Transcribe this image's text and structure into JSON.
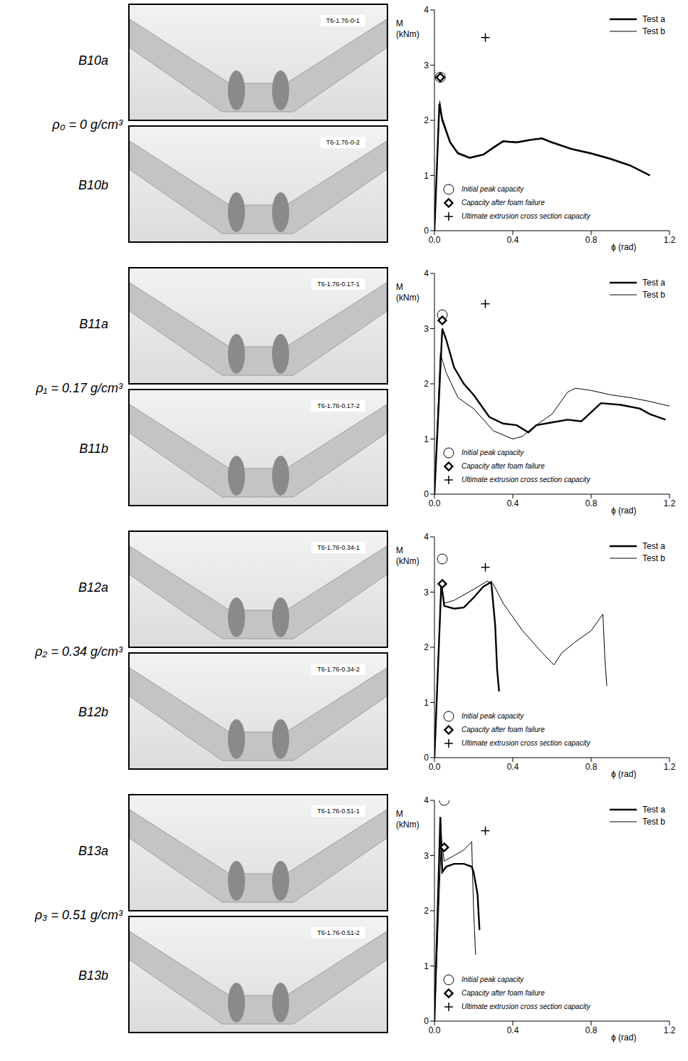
{
  "chart_data": [
    {
      "type": "line",
      "specimens": [
        "B10a",
        "B10b"
      ],
      "tags": [
        "T6-1.76-0-1",
        "T6-1.76-0-2"
      ],
      "density": "ρ₀ = 0 g/cm³",
      "x_label": "ϕ (rad)",
      "y_label": "M (kNm)",
      "xlim": [
        0,
        1.2
      ],
      "xticks": [
        {
          "value": 0,
          "label": "0.0"
        },
        0.4,
        0.8,
        1.2
      ],
      "ylim": [
        0,
        4
      ],
      "yticks": [
        0,
        1,
        2,
        3,
        4
      ],
      "legend": "upper right",
      "series": [
        {
          "name": "Test a",
          "color": "#000000",
          "x": [
            0,
            0.025,
            0.04,
            0.08,
            0.12,
            0.18,
            0.25,
            0.3,
            0.35,
            0.42,
            0.5,
            0.55,
            0.6,
            0.7,
            0.8,
            0.9,
            1.0,
            1.1
          ],
          "values": [
            0,
            2.3,
            2.0,
            1.6,
            1.4,
            1.32,
            1.38,
            1.5,
            1.62,
            1.6,
            1.65,
            1.67,
            1.6,
            1.48,
            1.4,
            1.3,
            1.18,
            1.0
          ]
        },
        {
          "name": "Test b",
          "color": "#000000",
          "x": [
            0,
            0.027,
            0.04,
            0.08,
            0.12,
            0.18,
            0.25,
            0.3,
            0.35,
            0.42,
            0.5,
            0.55,
            0.6,
            0.7,
            0.8,
            0.9,
            1.0,
            1.1
          ],
          "values": [
            0,
            2.35,
            2.05,
            1.62,
            1.42,
            1.33,
            1.39,
            1.52,
            1.63,
            1.61,
            1.66,
            1.68,
            1.61,
            1.49,
            1.41,
            1.31,
            1.19,
            1.01
          ]
        }
      ],
      "points": [
        {
          "name": "Initial peak capacity",
          "marker": "circle",
          "x": 0.03,
          "y": 2.78
        },
        {
          "name": "Capacity after foam failure",
          "marker": "diamond",
          "x": 0.03,
          "y": 2.78
        },
        {
          "name": "Ultimate extrusion cross section capacity",
          "marker": "plus",
          "x": 0.26,
          "y": 3.5
        }
      ]
    },
    {
      "type": "line",
      "specimens": [
        "B11a",
        "B11b"
      ],
      "tags": [
        "T6-1.76-0.17-1",
        "T6-1.76-0.17-2"
      ],
      "density": "ρ₁ = 0.17 g/cm³",
      "x_label": "ϕ (rad)",
      "y_label": "M (kNm)",
      "xlim": [
        0,
        1.2
      ],
      "xticks": [
        {
          "value": 0,
          "label": "0.0"
        },
        0.4,
        0.8,
        1.2
      ],
      "ylim": [
        0,
        4
      ],
      "yticks": [
        0,
        1,
        2,
        3,
        4
      ],
      "legend": "upper right",
      "series": [
        {
          "name": "Test a",
          "color": "#000000",
          "x": [
            0,
            0.04,
            0.06,
            0.1,
            0.15,
            0.2,
            0.28,
            0.35,
            0.42,
            0.48,
            0.52,
            0.6,
            0.68,
            0.75,
            0.85,
            0.95,
            1.05,
            1.1,
            1.18
          ],
          "values": [
            0,
            3.0,
            2.8,
            2.3,
            2.0,
            1.8,
            1.4,
            1.28,
            1.25,
            1.12,
            1.25,
            1.3,
            1.35,
            1.32,
            1.65,
            1.62,
            1.55,
            1.45,
            1.35
          ]
        },
        {
          "name": "Test b",
          "color": "#000000",
          "x": [
            0,
            0.03,
            0.06,
            0.12,
            0.2,
            0.3,
            0.4,
            0.45,
            0.5,
            0.6,
            0.68,
            0.72,
            0.8,
            0.9,
            1.0,
            1.1,
            1.22
          ],
          "values": [
            0,
            2.55,
            2.2,
            1.75,
            1.55,
            1.15,
            1.0,
            1.05,
            1.2,
            1.45,
            1.85,
            1.92,
            1.88,
            1.8,
            1.75,
            1.68,
            1.58
          ]
        }
      ],
      "points": [
        {
          "name": "Initial peak capacity",
          "marker": "circle",
          "x": 0.04,
          "y": 3.25
        },
        {
          "name": "Capacity after foam failure",
          "marker": "diamond",
          "x": 0.04,
          "y": 3.15
        },
        {
          "name": "Ultimate extrusion cross section capacity",
          "marker": "plus",
          "x": 0.26,
          "y": 3.45
        }
      ]
    },
    {
      "type": "line",
      "specimens": [
        "B12a",
        "B12b"
      ],
      "tags": [
        "T6-1.76-0.34-1",
        "T6-1.76-0.34-2"
      ],
      "density": "ρ₂ = 0.34 g/cm³",
      "x_label": "ϕ (rad)",
      "y_label": "M (kNm)",
      "xlim": [
        0,
        1.2
      ],
      "xticks": [
        {
          "value": 0,
          "label": "0.0"
        },
        0.4,
        0.8,
        1.2
      ],
      "ylim": [
        0,
        4
      ],
      "yticks": [
        0,
        1,
        2,
        3,
        4
      ],
      "legend": "upper right",
      "series": [
        {
          "name": "Test a",
          "color": "#000000",
          "x": [
            0,
            0.035,
            0.05,
            0.1,
            0.15,
            0.2,
            0.25,
            0.29,
            0.31,
            0.32,
            0.33
          ],
          "values": [
            0,
            3.15,
            2.75,
            2.7,
            2.72,
            2.9,
            3.1,
            3.18,
            2.4,
            1.6,
            1.2
          ]
        },
        {
          "name": "Test b",
          "color": "#000000",
          "x": [
            0,
            0.035,
            0.05,
            0.1,
            0.2,
            0.27,
            0.3,
            0.35,
            0.45,
            0.55,
            0.61,
            0.65,
            0.72,
            0.8,
            0.86,
            0.87,
            0.88
          ],
          "values": [
            0,
            3.2,
            2.8,
            2.85,
            3.05,
            3.2,
            3.15,
            2.8,
            2.3,
            1.9,
            1.68,
            1.9,
            2.1,
            2.3,
            2.6,
            1.8,
            1.3
          ]
        }
      ],
      "points": [
        {
          "name": "Initial peak capacity",
          "marker": "circle",
          "x": 0.04,
          "y": 3.6
        },
        {
          "name": "Capacity after foam failure",
          "marker": "diamond",
          "x": 0.04,
          "y": 3.15
        },
        {
          "name": "Ultimate extrusion cross section capacity",
          "marker": "plus",
          "x": 0.26,
          "y": 3.45
        }
      ]
    },
    {
      "type": "line",
      "specimens": [
        "B13a",
        "B13b"
      ],
      "tags": [
        "T6-1.76-0.51-1",
        "T6-1.76-0.51-2"
      ],
      "density": "ρ₃ = 0.51 g/cm³",
      "x_label": "ϕ (rad)",
      "y_label": "M (kNm)",
      "xlim": [
        0,
        1.2
      ],
      "xticks": [
        {
          "value": 0,
          "label": "0.0"
        },
        0.4,
        0.8,
        1.2
      ],
      "ylim": [
        0,
        4
      ],
      "yticks": [
        0,
        1,
        2,
        3,
        4
      ],
      "legend": "upper right",
      "series": [
        {
          "name": "Test a",
          "color": "#000000",
          "x": [
            0,
            0.03,
            0.04,
            0.06,
            0.1,
            0.15,
            0.19,
            0.2,
            0.22,
            0.23
          ],
          "values": [
            0,
            3.7,
            2.7,
            2.8,
            2.85,
            2.85,
            2.8,
            2.7,
            2.3,
            1.65
          ]
        },
        {
          "name": "Test b",
          "color": "#000000",
          "x": [
            0,
            0.035,
            0.05,
            0.1,
            0.15,
            0.19,
            0.2,
            0.21
          ],
          "values": [
            0,
            3.3,
            2.9,
            3.0,
            3.1,
            3.25,
            2.0,
            1.2
          ]
        }
      ],
      "points": [
        {
          "name": "Initial peak capacity",
          "marker": "circle",
          "x": 0.05,
          "y": 4.0
        },
        {
          "name": "Capacity after foam failure",
          "marker": "diamond",
          "x": 0.05,
          "y": 3.15
        },
        {
          "name": "Ultimate extrusion cross section capacity",
          "marker": "plus",
          "x": 0.26,
          "y": 3.45
        }
      ]
    }
  ]
}
